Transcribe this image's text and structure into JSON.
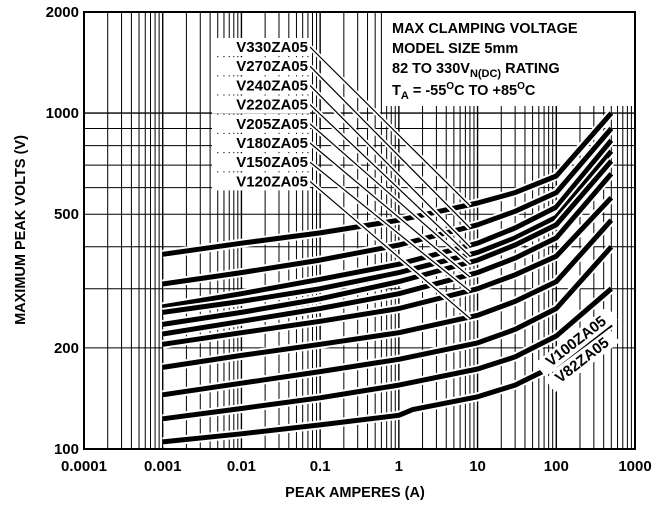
{
  "chart_data": {
    "type": "line",
    "title": "",
    "xlabel": "PEAK AMPERES (A)",
    "ylabel": "MAXIMUM PEAK VOLTS (V)",
    "x_scale": "log",
    "y_scale": "log",
    "xlim": [
      0.0001,
      1000
    ],
    "ylim": [
      100,
      2000
    ],
    "grid": true,
    "x_ticks": [
      0.0001,
      0.001,
      0.01,
      0.1,
      1,
      10,
      100,
      1000
    ],
    "x_tick_labels": [
      "0.0001",
      "0.001",
      "0.01",
      "0.1",
      "1",
      "10",
      "100",
      "1000"
    ],
    "y_ticks": [
      100,
      200,
      500,
      1000,
      2000
    ],
    "y_tick_labels": [
      "100",
      "200",
      "500",
      "1000",
      "2000"
    ],
    "info_box": {
      "line1": "MAX CLAMPING VOLTAGE",
      "line2": "MODEL SIZE 5mm",
      "line3_main": "82 TO 330V",
      "line3_sub": "N(DC)",
      "line3_end": " RATING",
      "line4_T": "T",
      "line4_sub": "A",
      "line4_a": " = -55",
      "line4_deg1": "O",
      "line4_b": "C TO +85",
      "line4_deg2": "O",
      "line4_c": "C"
    },
    "series": [
      {
        "name": "V330ZA05",
        "x": [
          0.001,
          0.01,
          0.1,
          1,
          10,
          30,
          100,
          500
        ],
        "y": [
          380,
          410,
          440,
          480,
          540,
          580,
          650,
          1000
        ]
      },
      {
        "name": "V270ZA05",
        "x": [
          0.001,
          0.01,
          0.1,
          1,
          10,
          30,
          100,
          500
        ],
        "y": [
          310,
          335,
          365,
          405,
          465,
          510,
          580,
          900
        ]
      },
      {
        "name": "V240ZA05",
        "x": [
          0.001,
          0.01,
          0.1,
          1,
          10,
          30,
          100,
          500
        ],
        "y": [
          265,
          290,
          320,
          355,
          410,
          455,
          525,
          830
        ]
      },
      {
        "name": "V220ZA05",
        "x": [
          0.001,
          0.01,
          0.1,
          1,
          10,
          30,
          100,
          500
        ],
        "y": [
          255,
          275,
          300,
          335,
          385,
          425,
          490,
          770
        ]
      },
      {
        "name": "V205ZA05",
        "x": [
          0.001,
          0.01,
          0.1,
          1,
          10,
          30,
          100,
          500
        ],
        "y": [
          235,
          255,
          280,
          315,
          365,
          405,
          465,
          720
        ]
      },
      {
        "name": "V180ZA05",
        "x": [
          0.001,
          0.01,
          0.1,
          1,
          10,
          30,
          100,
          500
        ],
        "y": [
          220,
          240,
          262,
          290,
          335,
          370,
          425,
          660
        ]
      },
      {
        "name": "V150ZA05",
        "x": [
          0.001,
          0.01,
          0.1,
          1,
          10,
          30,
          100,
          500
        ],
        "y": [
          205,
          222,
          240,
          262,
          300,
          330,
          375,
          560
        ]
      },
      {
        "name": "V120ZA05",
        "x": [
          0.001,
          0.01,
          0.1,
          1,
          10,
          30,
          100,
          500
        ],
        "y": [
          175,
          190,
          205,
          222,
          250,
          275,
          315,
          480
        ]
      },
      {
        "name": "",
        "x": [
          0.001,
          0.01,
          0.1,
          1,
          10,
          30,
          100,
          500
        ],
        "y": [
          145,
          157,
          170,
          185,
          207,
          227,
          262,
          400
        ]
      },
      {
        "name": "V100ZA05",
        "x": [
          0.001,
          0.01,
          0.1,
          1,
          10,
          30,
          100,
          500
        ],
        "y": [
          123,
          132,
          142,
          155,
          173,
          188,
          217,
          300
        ]
      },
      {
        "name": "V82ZA05",
        "x": [
          0.001,
          0.01,
          0.1,
          1,
          1.5,
          10,
          30,
          100,
          500
        ],
        "y": [
          105,
          111,
          118,
          126,
          131,
          143,
          155,
          178,
          235
        ]
      }
    ],
    "callouts": [
      {
        "label": "V330ZA05",
        "tip_x": 8,
        "tip_y": 530
      },
      {
        "label": "V270ZA05",
        "tip_x": 8,
        "tip_y": 455
      },
      {
        "label": "V240ZA05",
        "tip_x": 8,
        "tip_y": 400
      },
      {
        "label": "V220ZA05",
        "tip_x": 8,
        "tip_y": 375
      },
      {
        "label": "V205ZA05",
        "tip_x": 8,
        "tip_y": 355
      },
      {
        "label": "V180ZA05",
        "tip_x": 8,
        "tip_y": 325
      },
      {
        "label": "V150ZA05",
        "tip_x": 8,
        "tip_y": 295
      },
      {
        "label": "V120ZA05",
        "tip_x": 8,
        "tip_y": 245
      }
    ],
    "rotated_labels": [
      {
        "label": "V100ZA05"
      },
      {
        "label": "V82ZA05"
      }
    ]
  }
}
